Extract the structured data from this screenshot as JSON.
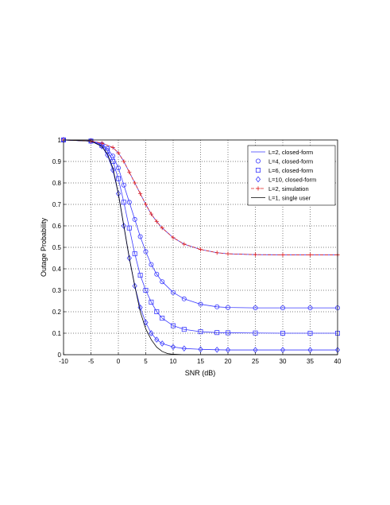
{
  "chart_data": {
    "type": "line",
    "xlabel": "SNR (dB)",
    "ylabel": "Outage Probability",
    "xlim": [
      -10,
      40
    ],
    "ylim": [
      0,
      1
    ],
    "xticks": [
      -10,
      -5,
      0,
      5,
      10,
      15,
      20,
      25,
      30,
      35,
      40
    ],
    "yticks": [
      0,
      0.1,
      0.2,
      0.3,
      0.4,
      0.5,
      0.6,
      0.7,
      0.8,
      0.9,
      1
    ],
    "xtick_labels": [
      "-10",
      "-5",
      "0",
      "5",
      "10",
      "15",
      "20",
      "25",
      "30",
      "35",
      "40"
    ],
    "ytick_labels": [
      "0",
      "0.1",
      "0.2",
      "0.3",
      "0.4",
      "0.5",
      "0.6",
      "0.7",
      "0.8",
      "0.9",
      "1"
    ],
    "grid": true,
    "legend_position": "top-right",
    "series": [
      {
        "name": "L=2, closed-form",
        "color": "#3a3aff",
        "style": "solid",
        "marker": "none",
        "x": [
          -10,
          -5,
          -3,
          -1,
          0,
          1,
          2,
          3,
          4,
          5,
          6,
          7,
          8,
          10,
          12,
          15,
          18,
          20,
          25,
          30,
          35,
          40
        ],
        "y": [
          1.0,
          0.995,
          0.985,
          0.965,
          0.94,
          0.9,
          0.85,
          0.8,
          0.75,
          0.7,
          0.655,
          0.62,
          0.59,
          0.545,
          0.515,
          0.49,
          0.475,
          0.47,
          0.466,
          0.465,
          0.465,
          0.465
        ]
      },
      {
        "name": "L=4, closed-form",
        "color": "#3a3aff",
        "style": "solid",
        "marker": "circle",
        "x": [
          -10,
          -5,
          -3,
          -2,
          -1,
          0,
          1,
          2,
          3,
          4,
          5,
          6,
          7,
          8,
          10,
          12,
          15,
          18,
          20,
          25,
          30,
          35,
          40
        ],
        "y": [
          1.0,
          0.995,
          0.98,
          0.96,
          0.925,
          0.87,
          0.79,
          0.71,
          0.63,
          0.55,
          0.48,
          0.42,
          0.375,
          0.34,
          0.29,
          0.26,
          0.235,
          0.223,
          0.22,
          0.218,
          0.218,
          0.218,
          0.218
        ]
      },
      {
        "name": "L=6, closed-form",
        "color": "#3a3aff",
        "style": "solid",
        "marker": "square",
        "x": [
          -10,
          -5,
          -3,
          -2,
          -1,
          0,
          1,
          2,
          3,
          4,
          5,
          6,
          7,
          8,
          10,
          12,
          15,
          18,
          20,
          25,
          30,
          35,
          40
        ],
        "y": [
          1.0,
          0.995,
          0.975,
          0.95,
          0.9,
          0.82,
          0.71,
          0.59,
          0.47,
          0.37,
          0.3,
          0.245,
          0.2,
          0.17,
          0.135,
          0.118,
          0.107,
          0.103,
          0.102,
          0.101,
          0.1,
          0.1,
          0.1
        ]
      },
      {
        "name": "L=10, closed-form",
        "color": "#3a3aff",
        "style": "solid",
        "marker": "diamond",
        "x": [
          -10,
          -5,
          -3,
          -2,
          -1,
          0,
          1,
          2,
          3,
          4,
          5,
          6,
          7,
          8,
          10,
          12,
          15,
          18,
          20,
          25,
          30,
          35,
          40
        ],
        "y": [
          1.0,
          0.995,
          0.97,
          0.93,
          0.86,
          0.75,
          0.6,
          0.45,
          0.32,
          0.22,
          0.15,
          0.1,
          0.07,
          0.052,
          0.036,
          0.029,
          0.025,
          0.023,
          0.022,
          0.022,
          0.022,
          0.022,
          0.022
        ]
      },
      {
        "name": "L=2, simulation",
        "color": "#e02020",
        "style": "dashed",
        "marker": "plus",
        "x": [
          -10,
          -5,
          -3,
          -1,
          0,
          1,
          2,
          3,
          4,
          5,
          6,
          7,
          8,
          10,
          12,
          15,
          18,
          20,
          25,
          30,
          35,
          40
        ],
        "y": [
          1.0,
          0.995,
          0.985,
          0.965,
          0.94,
          0.9,
          0.85,
          0.8,
          0.75,
          0.7,
          0.655,
          0.62,
          0.59,
          0.545,
          0.515,
          0.49,
          0.475,
          0.47,
          0.466,
          0.465,
          0.465,
          0.465
        ]
      },
      {
        "name": "L=1, single user",
        "color": "#000000",
        "style": "solid",
        "marker": "none",
        "x": [
          -10,
          -5,
          -3,
          -2,
          -1,
          0,
          1,
          2,
          3,
          4,
          5,
          6,
          7,
          8,
          9,
          10,
          12,
          15,
          20,
          30,
          40
        ],
        "y": [
          1.0,
          0.995,
          0.97,
          0.935,
          0.87,
          0.75,
          0.6,
          0.45,
          0.32,
          0.2,
          0.12,
          0.07,
          0.035,
          0.015,
          0.005,
          0.002,
          0.0,
          0.0,
          0.0,
          0.0,
          0.0
        ]
      }
    ]
  }
}
